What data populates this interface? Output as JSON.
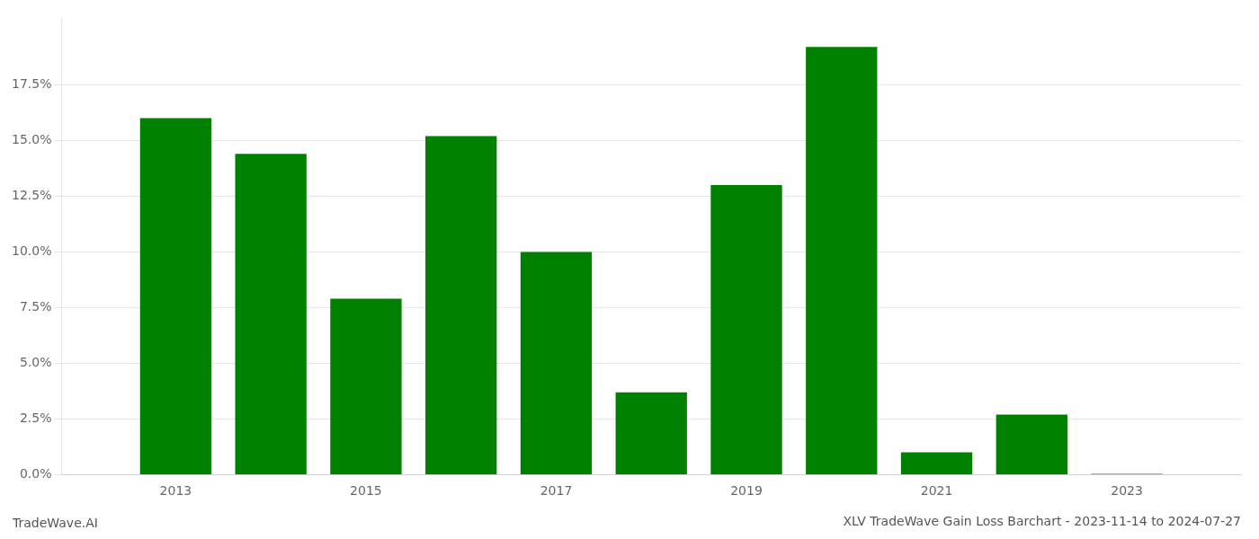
{
  "chart_data": {
    "type": "bar",
    "title": "XLV TradeWave Gain Loss Barchart - 2023-11-14 to 2024-07-27",
    "annotations": [
      "TradeWave.AI"
    ],
    "x": [
      2013,
      2014,
      2015,
      2016,
      2017,
      2018,
      2019,
      2020,
      2021,
      2022,
      2023
    ],
    "values": [
      0.16,
      0.144,
      0.079,
      0.152,
      0.1,
      0.037,
      0.13,
      0.192,
      0.01,
      0.027,
      0.0004
    ],
    "color": "#008000",
    "xlim": [
      2011.8,
      2024.2
    ],
    "xticks": [
      2013,
      2015,
      2017,
      2019,
      2021,
      2023
    ],
    "ylim": [
      0,
      0.205
    ],
    "yticks": [
      {
        "value": 0.0,
        "label": "0.0%"
      },
      {
        "value": 0.025,
        "label": "2.5%"
      },
      {
        "value": 0.05,
        "label": "5.0%"
      },
      {
        "value": 0.075,
        "label": "7.5%"
      },
      {
        "value": 0.1,
        "label": "10.0%"
      },
      {
        "value": 0.125,
        "label": "12.5%"
      },
      {
        "value": 0.15,
        "label": "15.0%"
      },
      {
        "value": 0.175,
        "label": "17.5%"
      }
    ],
    "grid": true
  }
}
